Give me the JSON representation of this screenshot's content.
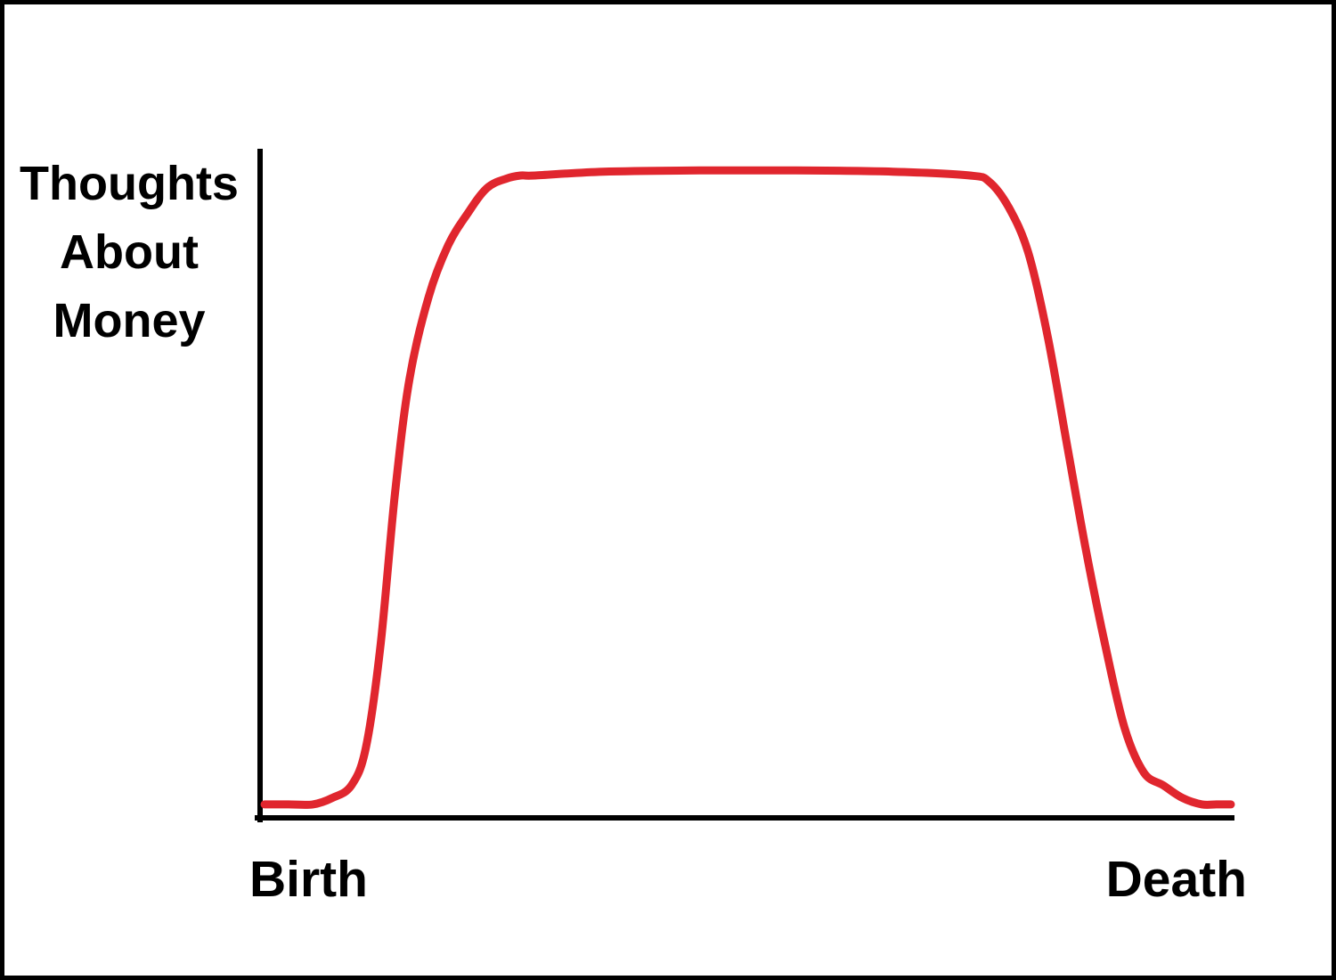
{
  "chart_data": {
    "type": "line",
    "title": "",
    "ylabel_lines": [
      "Thoughts",
      "About",
      "Money"
    ],
    "xlabel": "",
    "x_tick_labels": [
      "Birth",
      "Death"
    ],
    "x_range": [
      0,
      100
    ],
    "y_range": [
      0,
      100
    ],
    "grid": false,
    "legend": "none",
    "axis_color": "#000000",
    "series": [
      {
        "color": "#e0262e",
        "x": [
          0,
          2.5,
          5,
          7,
          9,
          10.5,
          12,
          13.5,
          15,
          17,
          19,
          21,
          23,
          25,
          26.5,
          28,
          35,
          45,
          55,
          65,
          73,
          75,
          77,
          79,
          81,
          83,
          85,
          87,
          89,
          91,
          93,
          95,
          97,
          98.5,
          100
        ],
        "y": [
          1,
          1,
          1,
          2,
          4,
          10,
          26,
          50,
          68,
          81,
          89,
          94,
          98,
          99.5,
          100,
          100,
          100.6,
          100.8,
          100.8,
          100.6,
          100,
          99,
          95,
          88,
          75,
          58,
          41,
          26,
          13,
          6,
          4,
          2,
          1,
          1,
          1
        ]
      }
    ]
  }
}
